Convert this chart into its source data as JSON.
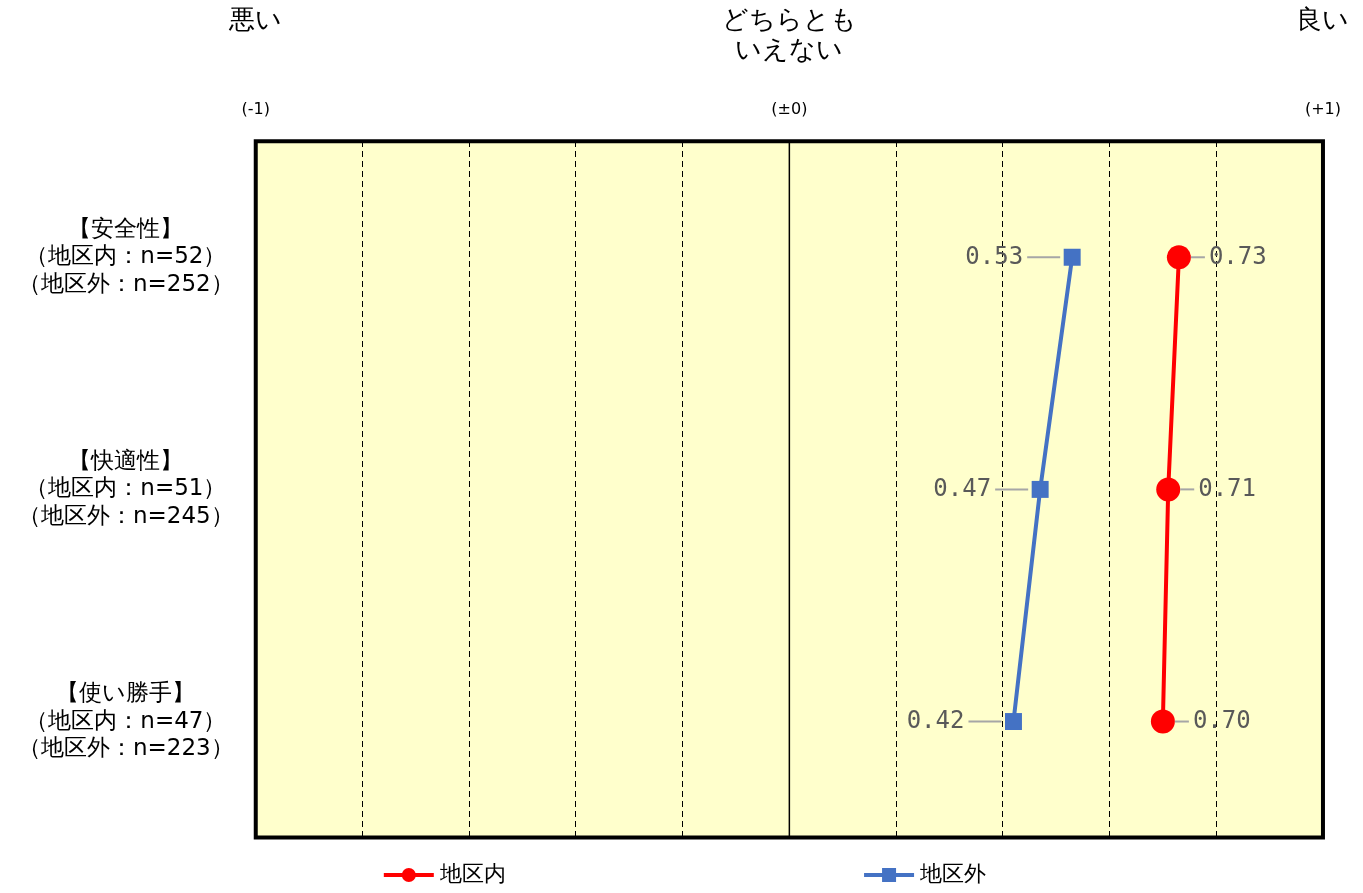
{
  "chart_data": {
    "type": "line",
    "orientation": "horizontal",
    "categories": [
      "【安全性】（地区内：n=52）（地区外：n=252）",
      "【快適性】（地区内：n=51）（地区外：n=245）",
      "【使い勝手】（地区内：n=47）（地区外：n=223）"
    ],
    "series": [
      {
        "name": "地区内",
        "color": "#ff0000",
        "marker": "circle",
        "values": [
          0.73,
          0.71,
          0.7
        ],
        "value_labels": [
          "0.73",
          "0.71",
          "0.70"
        ]
      },
      {
        "name": "地区外",
        "color": "#4472c4",
        "marker": "square",
        "values": [
          0.53,
          0.47,
          0.42
        ],
        "value_labels": [
          "0.53",
          "0.47",
          "0.42"
        ]
      }
    ],
    "xlim": [
      -1,
      1
    ],
    "xticks": [
      {
        "value": -1,
        "label": "(-1)"
      },
      {
        "value": -0.8,
        "label": null
      },
      {
        "value": -0.6,
        "label": null
      },
      {
        "value": -0.4,
        "label": null
      },
      {
        "value": -0.2,
        "label": null
      },
      {
        "value": 0,
        "label": "(±0)"
      },
      {
        "value": 0.2,
        "label": null
      },
      {
        "value": 0.4,
        "label": null
      },
      {
        "value": 0.6,
        "label": null
      },
      {
        "value": 0.8,
        "label": null
      },
      {
        "value": 1,
        "label": "(+1)"
      }
    ],
    "annotations": [
      "悪い",
      "どちらともいえない",
      "良い"
    ],
    "grid": "x",
    "ref_lines": [
      {
        "axis": "x",
        "value": 0,
        "color": "#000000",
        "line_style": "solid"
      }
    ],
    "legend": "bottom",
    "line_style": "solid"
  }
}
